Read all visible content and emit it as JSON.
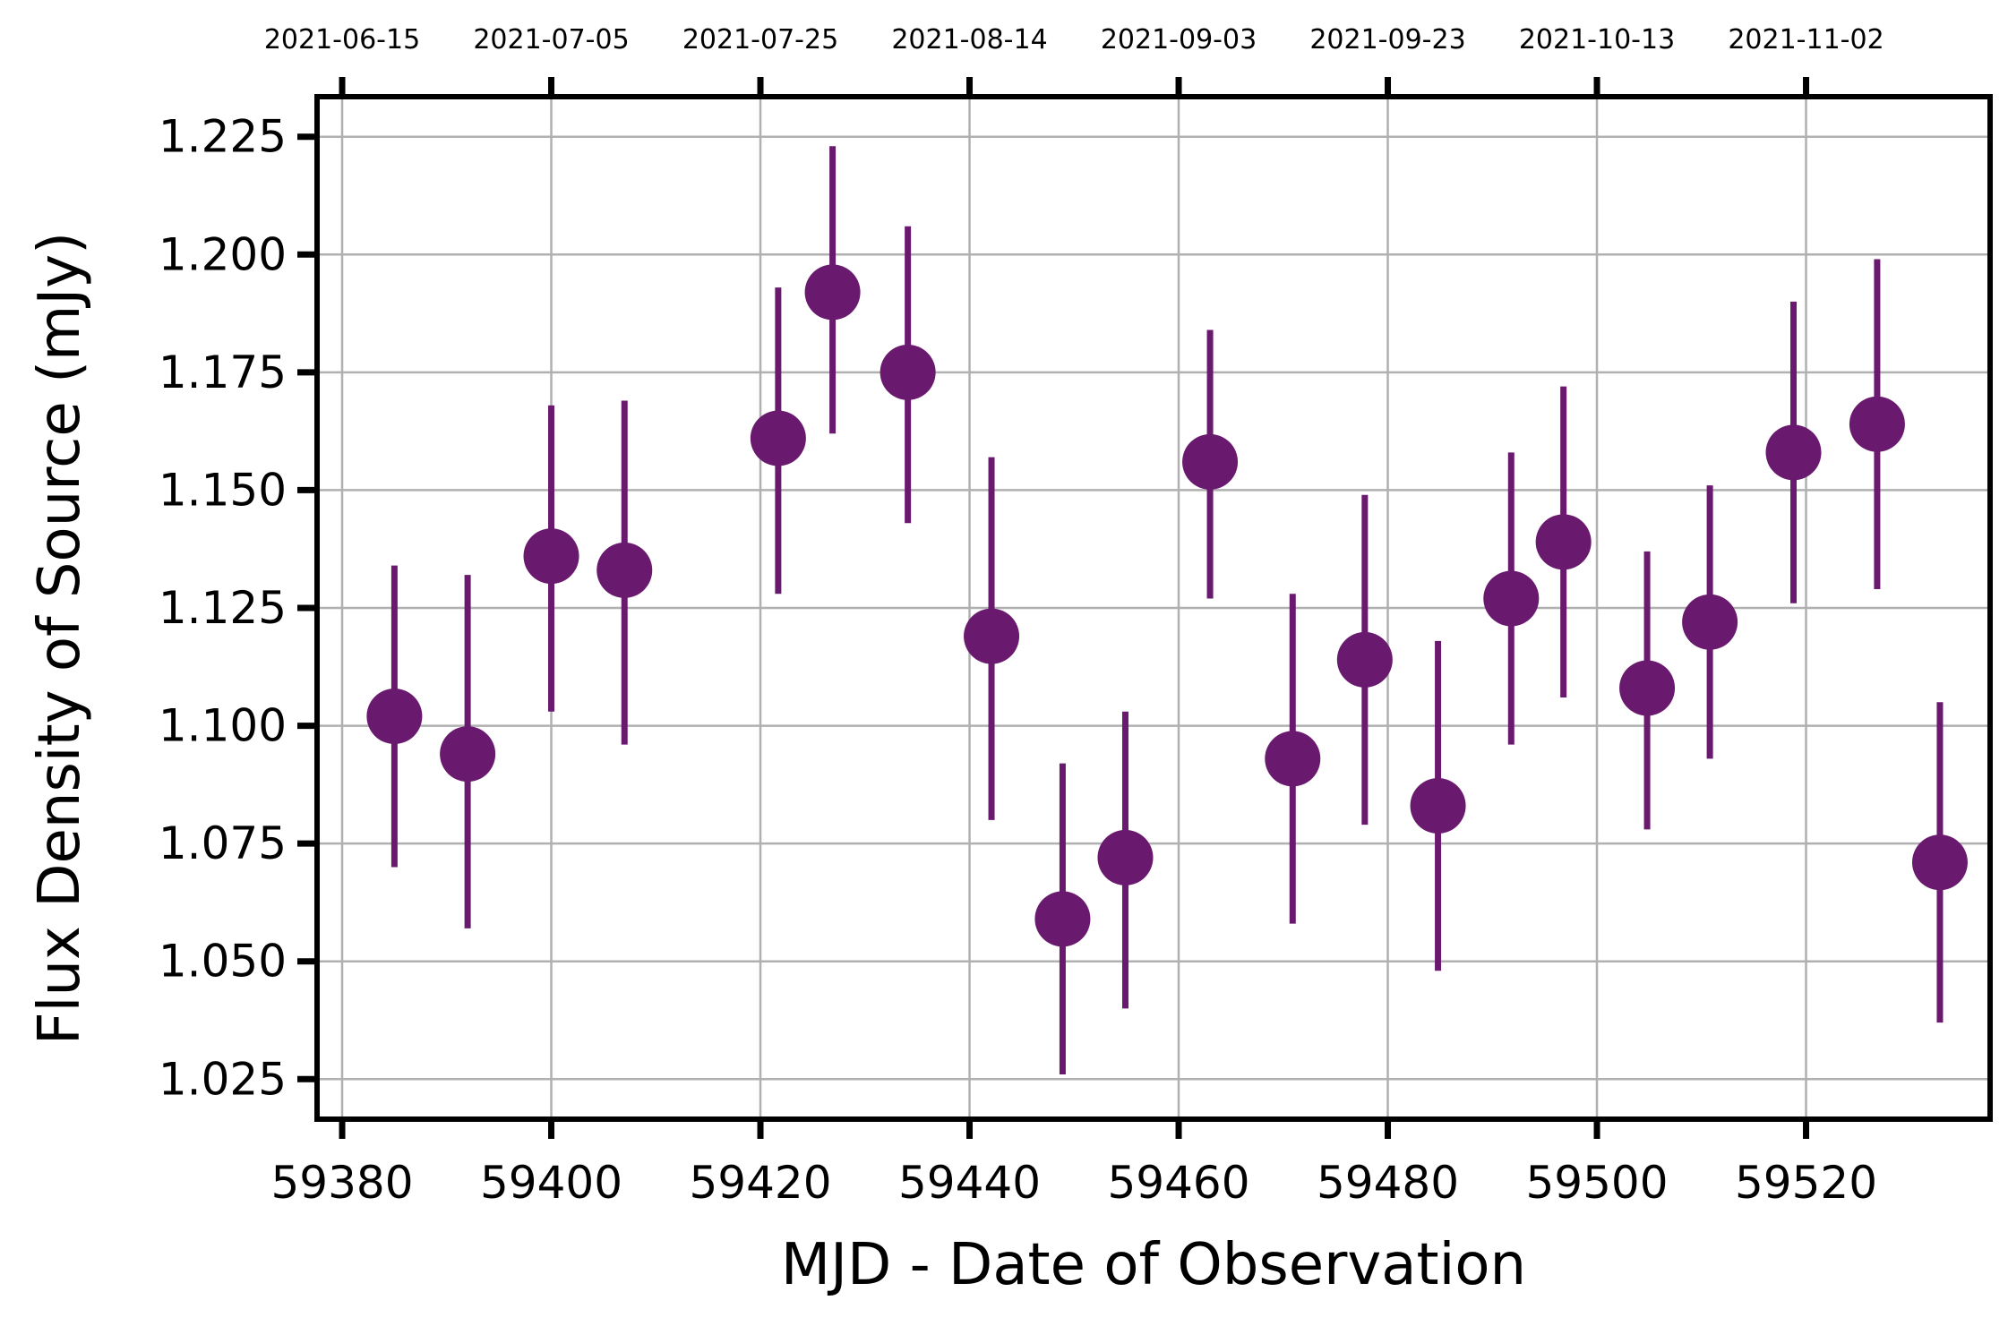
{
  "chart_data": {
    "type": "scatter",
    "title": "",
    "xlabel": "MJD - Date of Observation",
    "ylabel": "Flux Density of Source (mJy)",
    "xlim": [
      59377.6,
      59537.6
    ],
    "ylim": [
      1.0165,
      1.2335
    ],
    "grid": true,
    "marker_color": "#6a1a6e",
    "grid_color": "#b0b0b0",
    "x_ticks": [
      59380,
      59400,
      59420,
      59440,
      59460,
      59480,
      59500,
      59520
    ],
    "x_tick_labels": [
      "59380",
      "59400",
      "59420",
      "59440",
      "59460",
      "59480",
      "59500",
      "59520"
    ],
    "y_ticks": [
      1.025,
      1.05,
      1.075,
      1.1,
      1.125,
      1.15,
      1.175,
      1.2,
      1.225
    ],
    "y_tick_labels": [
      "1.025",
      "1.050",
      "1.075",
      "1.100",
      "1.125",
      "1.150",
      "1.175",
      "1.200",
      "1.225"
    ],
    "top_axis": {
      "ticks": [
        59380,
        59400,
        59420,
        59440,
        59460,
        59480,
        59500,
        59520
      ],
      "labels": [
        "2021-06-15",
        "2021-07-05",
        "2021-07-25",
        "2021-08-14",
        "2021-09-03",
        "2021-09-23",
        "2021-10-13",
        "2021-11-02"
      ]
    },
    "series": [
      {
        "x": [
          59385.0,
          59392.0,
          59400.0,
          59407.0,
          59421.7,
          59426.9,
          59434.1,
          59442.1,
          59448.9,
          59454.9,
          59463.0,
          59470.9,
          59477.8,
          59484.8,
          59491.8,
          59496.8,
          59504.8,
          59510.8,
          59518.8,
          59526.8,
          59532.8
        ],
        "y": [
          1.102,
          1.094,
          1.136,
          1.133,
          1.161,
          1.192,
          1.175,
          1.119,
          1.059,
          1.072,
          1.156,
          1.093,
          1.114,
          1.083,
          1.127,
          1.139,
          1.108,
          1.122,
          1.158,
          1.164,
          1.071
        ],
        "yerr_low": [
          1.07,
          1.057,
          1.103,
          1.096,
          1.128,
          1.162,
          1.143,
          1.08,
          1.026,
          1.04,
          1.127,
          1.058,
          1.079,
          1.048,
          1.096,
          1.106,
          1.078,
          1.093,
          1.126,
          1.129,
          1.037
        ],
        "yerr_high": [
          1.134,
          1.132,
          1.168,
          1.169,
          1.193,
          1.223,
          1.206,
          1.157,
          1.092,
          1.103,
          1.184,
          1.128,
          1.149,
          1.118,
          1.158,
          1.172,
          1.137,
          1.151,
          1.19,
          1.199,
          1.105
        ]
      }
    ]
  }
}
